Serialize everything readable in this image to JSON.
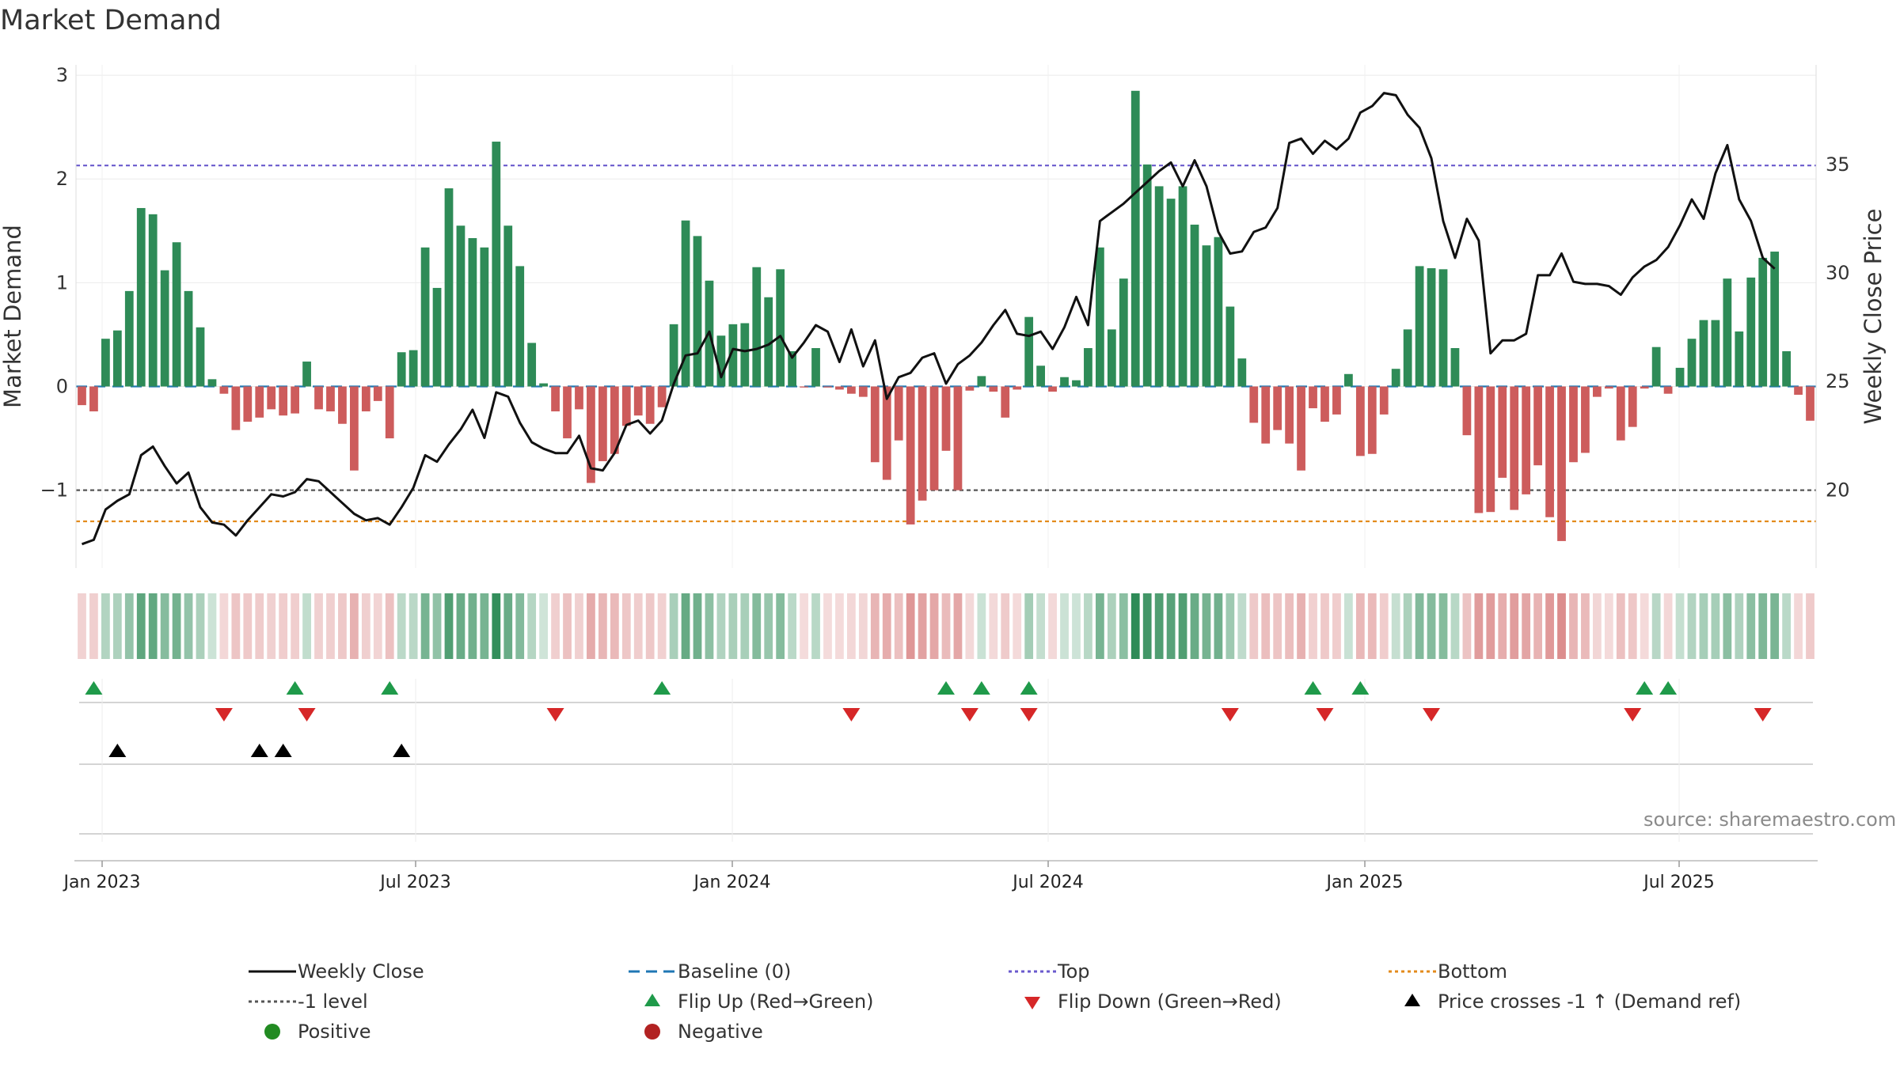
{
  "title": "Market Demand",
  "source": "source: sharemaestro.com",
  "colors": {
    "positive": "#2e8b57",
    "negative": "#cd5c5c",
    "close": "#111111",
    "baseline": "#1f77b4",
    "top": "#6a5acd",
    "bottom": "#e38b1c",
    "minus1": "#555555",
    "flip_up": "#1f9a4a",
    "flip_down": "#d62728",
    "cross": "#000000",
    "pos_dot": "#228b22",
    "neg_dot": "#b22222"
  },
  "chart_data": {
    "type": "bar+line",
    "x_ticks": [
      "Jan 2023",
      "Jul 2023",
      "Jan 2024",
      "Jul 2024",
      "Jan 2025",
      "Jul 2025"
    ],
    "y_left": {
      "label": "Market Demand",
      "lim": [
        -1.75,
        3.1
      ],
      "ticks": [
        3,
        2,
        1,
        0,
        -1
      ],
      "tick_labels": [
        "3",
        "2",
        "1",
        "0",
        "−1"
      ]
    },
    "y_right": {
      "label": "Weekly Close Price",
      "lim": [
        16.4,
        39.6
      ],
      "ticks": [
        35,
        30,
        25,
        20
      ],
      "tick_labels": [
        "35",
        "30",
        "25",
        "20"
      ]
    },
    "reference_lines": {
      "baseline": 0,
      "top": 2.13,
      "bottom": -1.3,
      "minus1": -1
    },
    "demand": [
      -0.18,
      -0.24,
      0.46,
      0.54,
      0.92,
      1.72,
      1.66,
      1.12,
      1.39,
      0.92,
      0.57,
      0.07,
      -0.07,
      -0.42,
      -0.34,
      -0.3,
      -0.22,
      -0.28,
      -0.26,
      0.24,
      -0.22,
      -0.24,
      -0.36,
      -0.81,
      -0.24,
      -0.14,
      -0.5,
      0.33,
      0.35,
      1.34,
      0.95,
      1.91,
      1.55,
      1.43,
      1.34,
      2.36,
      1.55,
      1.16,
      0.42,
      0.03,
      -0.24,
      -0.5,
      -0.22,
      -0.93,
      -0.72,
      -0.65,
      -0.38,
      -0.28,
      -0.36,
      -0.2,
      0.6,
      1.6,
      1.45,
      1.02,
      0.49,
      0.6,
      0.61,
      1.15,
      0.86,
      1.13,
      0.34,
      -0.01,
      0.37,
      -0.01,
      -0.03,
      -0.07,
      -0.1,
      -0.73,
      -0.9,
      -0.52,
      -1.33,
      -1.1,
      -1.0,
      -0.62,
      -1.0,
      -0.04,
      0.1,
      -0.05,
      -0.3,
      -0.03,
      0.67,
      0.2,
      -0.05,
      0.09,
      0.06,
      0.37,
      1.34,
      0.55,
      1.04,
      2.85,
      2.14,
      1.93,
      1.81,
      1.93,
      1.56,
      1.36,
      1.44,
      0.77,
      0.27,
      -0.35,
      -0.55,
      -0.42,
      -0.55,
      -0.81,
      -0.21,
      -0.34,
      -0.27,
      0.12,
      -0.67,
      -0.65,
      -0.27,
      0.17,
      0.55,
      1.16,
      1.14,
      1.13,
      0.37,
      -0.47,
      -1.22,
      -1.21,
      -0.88,
      -1.19,
      -1.04,
      -0.76,
      -1.26,
      -1.49,
      -0.73,
      -0.64,
      -0.1,
      -0.02,
      -0.52,
      -0.39,
      -0.02,
      0.38,
      -0.07,
      0.18,
      0.46,
      0.64,
      0.64,
      1.04,
      0.53,
      1.05,
      1.24,
      1.3,
      0.34,
      -0.08,
      -0.33
    ],
    "close": [
      17.5,
      17.7,
      19.1,
      19.5,
      19.8,
      21.6,
      22.0,
      21.1,
      20.3,
      20.8,
      19.2,
      18.5,
      18.4,
      17.9,
      18.6,
      19.2,
      19.8,
      19.7,
      19.9,
      20.5,
      20.4,
      19.9,
      19.4,
      18.9,
      18.6,
      18.7,
      18.4,
      19.2,
      20.1,
      21.6,
      21.3,
      22.1,
      22.8,
      23.7,
      22.4,
      24.5,
      24.3,
      23.1,
      22.2,
      21.9,
      21.7,
      21.7,
      22.5,
      21.0,
      20.9,
      21.7,
      23.0,
      23.2,
      22.6,
      23.2,
      24.9,
      26.2,
      26.3,
      27.3,
      25.2,
      26.5,
      26.4,
      26.5,
      26.7,
      27.1,
      26.1,
      26.8,
      27.6,
      27.3,
      25.9,
      27.4,
      25.7,
      26.9,
      24.2,
      25.2,
      25.4,
      26.1,
      26.3,
      24.9,
      25.8,
      26.2,
      26.8,
      27.6,
      28.3,
      27.2,
      27.1,
      27.3,
      26.5,
      27.5,
      28.9,
      27.6,
      32.4,
      32.8,
      33.2,
      33.7,
      34.2,
      34.7,
      35.1,
      34.0,
      35.2,
      34.0,
      31.9,
      30.9,
      31.0,
      31.9,
      32.1,
      33.0,
      36.0,
      36.2,
      35.5,
      36.1,
      35.7,
      36.2,
      37.4,
      37.7,
      38.3,
      38.2,
      37.3,
      36.7,
      35.3,
      32.4,
      30.7,
      32.5,
      31.5,
      26.3,
      26.9,
      26.9,
      27.2,
      29.9,
      29.9,
      30.9,
      29.6,
      29.5,
      29.5,
      29.4,
      29.0,
      29.8,
      30.3,
      30.6,
      31.2,
      32.2,
      33.4,
      32.5,
      34.6,
      35.9,
      33.4,
      32.4,
      30.7,
      30.2
    ],
    "shading_strip": "per-bar tint of demand (green positive, red negative)",
    "flip_up_idx": [
      1,
      18,
      26,
      49,
      73,
      76,
      80,
      104,
      108,
      132,
      134
    ],
    "flip_down_idx": [
      12,
      19,
      40,
      65,
      75,
      80,
      97,
      105,
      114,
      131,
      142
    ],
    "cross_idx": [
      3,
      15,
      17,
      27
    ]
  },
  "legend": {
    "weekly_close": "Weekly Close",
    "baseline": "Baseline (0)",
    "top": "Top",
    "bottom": "Bottom",
    "minus1": "-1 level",
    "flip_up": "Flip Up (Red→Green)",
    "flip_down": "Flip Down (Green→Red)",
    "cross": "Price crosses -1 ↑ (Demand ref)",
    "positive": "Positive",
    "negative": "Negative"
  }
}
